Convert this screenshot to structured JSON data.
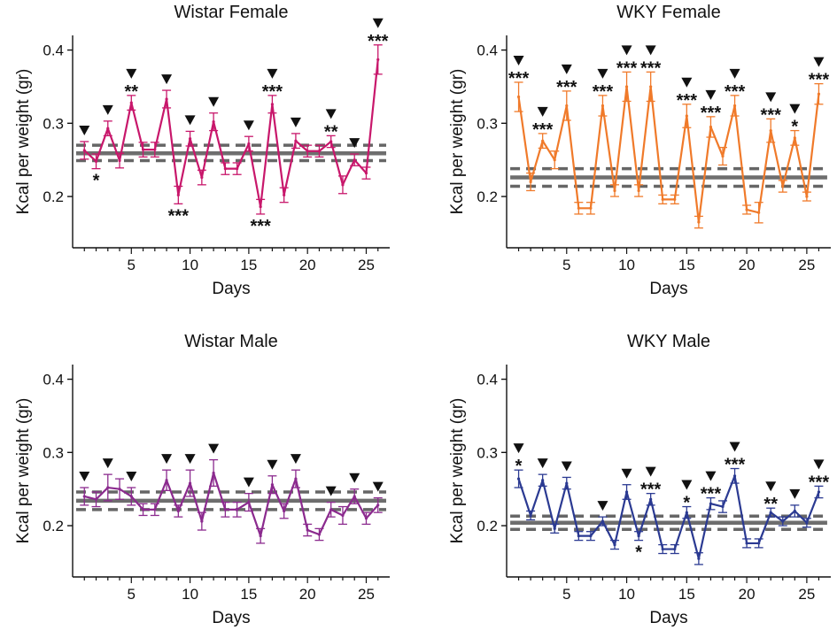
{
  "figure": {
    "background": "#ffffff"
  },
  "chart_data": [
    {
      "type": "line",
      "title": "Wistar Female",
      "xlabel": "Days",
      "ylabel": "Kcal per weight (gr)",
      "color": "#C8176B",
      "xlim": [
        0,
        27
      ],
      "ylim": [
        0.13,
        0.42
      ],
      "yticks": [
        0.2,
        0.3,
        0.4
      ],
      "ytick_labels": [
        "0.2",
        "0.3",
        "0.4"
      ],
      "xticks": [
        5,
        10,
        15,
        20,
        25
      ],
      "xtick_labels": [
        "5",
        "10",
        "15",
        "20",
        "25"
      ],
      "baseline": {
        "mean": 0.259,
        "upper": 0.27,
        "lower": 0.249
      },
      "x": [
        1,
        2,
        3,
        4,
        5,
        6,
        7,
        8,
        9,
        10,
        11,
        12,
        13,
        14,
        15,
        16,
        17,
        18,
        19,
        20,
        21,
        22,
        23,
        24,
        25,
        26
      ],
      "values": [
        0.263,
        0.248,
        0.293,
        0.249,
        0.328,
        0.264,
        0.264,
        0.333,
        0.202,
        0.279,
        0.226,
        0.302,
        0.238,
        0.238,
        0.272,
        0.186,
        0.326,
        0.202,
        0.276,
        0.262,
        0.262,
        0.275,
        0.216,
        0.25,
        0.232,
        0.387
      ],
      "errors": [
        0.012,
        0.01,
        0.01,
        0.01,
        0.01,
        0.01,
        0.01,
        0.012,
        0.012,
        0.01,
        0.01,
        0.012,
        0.008,
        0.008,
        0.01,
        0.01,
        0.012,
        0.01,
        0.01,
        0.008,
        0.008,
        0.008,
        0.012,
        0.008,
        0.008,
        0.02
      ],
      "annotations": [
        {
          "x": 1,
          "arrow": true,
          "stars": "",
          "position": "above"
        },
        {
          "x": 2,
          "arrow": false,
          "stars": "*",
          "position": "below"
        },
        {
          "x": 3,
          "arrow": true,
          "stars": "",
          "position": "above"
        },
        {
          "x": 5,
          "arrow": true,
          "stars": "**",
          "position": "above"
        },
        {
          "x": 8,
          "arrow": true,
          "stars": "",
          "position": "above"
        },
        {
          "x": 9,
          "arrow": false,
          "stars": "***",
          "position": "below"
        },
        {
          "x": 10,
          "arrow": true,
          "stars": "",
          "position": "above"
        },
        {
          "x": 12,
          "arrow": true,
          "stars": "",
          "position": "above"
        },
        {
          "x": 15,
          "arrow": true,
          "stars": "",
          "position": "above"
        },
        {
          "x": 16,
          "arrow": false,
          "stars": "***",
          "position": "below"
        },
        {
          "x": 17,
          "arrow": true,
          "stars": "***",
          "position": "above"
        },
        {
          "x": 19,
          "arrow": true,
          "stars": "",
          "position": "above"
        },
        {
          "x": 22,
          "arrow": true,
          "stars": "**",
          "position": "above"
        },
        {
          "x": 24,
          "arrow": true,
          "stars": "",
          "position": "above"
        },
        {
          "x": 26,
          "arrow": true,
          "stars": "***",
          "position": "above"
        }
      ]
    },
    {
      "type": "line",
      "title": "WKY Female",
      "xlabel": "Days",
      "ylabel": "Kcal per weight (gr)",
      "color": "#F07A2A",
      "xlim": [
        0,
        27
      ],
      "ylim": [
        0.13,
        0.42
      ],
      "yticks": [
        0.2,
        0.3,
        0.4
      ],
      "ytick_labels": [
        "0.2",
        "0.3",
        "0.4"
      ],
      "xticks": [
        5,
        10,
        15,
        20,
        25
      ],
      "xtick_labels": [
        "5",
        "10",
        "15",
        "20",
        "25"
      ],
      "baseline": {
        "mean": 0.226,
        "upper": 0.238,
        "lower": 0.214
      },
      "x": [
        1,
        2,
        3,
        4,
        5,
        6,
        7,
        8,
        9,
        10,
        11,
        12,
        13,
        14,
        15,
        16,
        17,
        18,
        19,
        20,
        21,
        22,
        23,
        24,
        25,
        26
      ],
      "values": [
        0.336,
        0.22,
        0.276,
        0.25,
        0.324,
        0.184,
        0.184,
        0.324,
        0.208,
        0.35,
        0.208,
        0.35,
        0.196,
        0.196,
        0.31,
        0.165,
        0.295,
        0.255,
        0.324,
        0.182,
        0.178,
        0.29,
        0.214,
        0.28,
        0.2,
        0.34
      ],
      "errors": [
        0.02,
        0.012,
        0.01,
        0.012,
        0.02,
        0.008,
        0.008,
        0.014,
        0.008,
        0.02,
        0.008,
        0.02,
        0.006,
        0.006,
        0.016,
        0.008,
        0.014,
        0.012,
        0.014,
        0.006,
        0.014,
        0.016,
        0.008,
        0.01,
        0.006,
        0.014
      ],
      "annotations": [
        {
          "x": 1,
          "arrow": true,
          "stars": "***",
          "position": "above"
        },
        {
          "x": 3,
          "arrow": true,
          "stars": "***",
          "position": "above"
        },
        {
          "x": 5,
          "arrow": true,
          "stars": "***",
          "position": "above"
        },
        {
          "x": 8,
          "arrow": true,
          "stars": "***",
          "position": "above"
        },
        {
          "x": 10,
          "arrow": true,
          "stars": "***",
          "position": "above"
        },
        {
          "x": 12,
          "arrow": true,
          "stars": "***",
          "position": "above"
        },
        {
          "x": 15,
          "arrow": true,
          "stars": "***",
          "position": "above"
        },
        {
          "x": 17,
          "arrow": true,
          "stars": "***",
          "position": "above"
        },
        {
          "x": 19,
          "arrow": true,
          "stars": "***",
          "position": "above"
        },
        {
          "x": 22,
          "arrow": true,
          "stars": "***",
          "position": "above"
        },
        {
          "x": 24,
          "arrow": true,
          "stars": "*",
          "position": "above"
        },
        {
          "x": 26,
          "arrow": true,
          "stars": "***",
          "position": "above"
        }
      ]
    },
    {
      "type": "line",
      "title": "Wistar Male",
      "xlabel": "Days",
      "ylabel": "Kcal per weight (gr)",
      "color": "#8B2A8E",
      "xlim": [
        0,
        27
      ],
      "ylim": [
        0.13,
        0.42
      ],
      "yticks": [
        0.2,
        0.3,
        0.4
      ],
      "ytick_labels": [
        "0.2",
        "0.3",
        "0.4"
      ],
      "xticks": [
        5,
        10,
        15,
        20,
        25
      ],
      "xtick_labels": [
        "5",
        "10",
        "15",
        "20",
        "25"
      ],
      "baseline": {
        "mean": 0.234,
        "upper": 0.246,
        "lower": 0.222
      },
      "x": [
        1,
        2,
        3,
        4,
        5,
        6,
        7,
        8,
        9,
        10,
        11,
        12,
        13,
        14,
        15,
        16,
        17,
        18,
        19,
        20,
        21,
        22,
        23,
        24,
        25,
        26
      ],
      "values": [
        0.24,
        0.236,
        0.252,
        0.25,
        0.24,
        0.222,
        0.222,
        0.262,
        0.22,
        0.258,
        0.206,
        0.272,
        0.222,
        0.222,
        0.232,
        0.186,
        0.256,
        0.22,
        0.264,
        0.194,
        0.188,
        0.222,
        0.214,
        0.24,
        0.21,
        0.228
      ],
      "errors": [
        0.012,
        0.01,
        0.018,
        0.014,
        0.012,
        0.008,
        0.008,
        0.014,
        0.008,
        0.018,
        0.012,
        0.018,
        0.01,
        0.01,
        0.012,
        0.01,
        0.012,
        0.01,
        0.012,
        0.008,
        0.008,
        0.01,
        0.012,
        0.01,
        0.008,
        0.01
      ],
      "annotations": [
        {
          "x": 1,
          "arrow": true,
          "stars": "",
          "position": "above"
        },
        {
          "x": 3,
          "arrow": true,
          "stars": "",
          "position": "above"
        },
        {
          "x": 5,
          "arrow": true,
          "stars": "",
          "position": "above"
        },
        {
          "x": 8,
          "arrow": true,
          "stars": "",
          "position": "above"
        },
        {
          "x": 10,
          "arrow": true,
          "stars": "",
          "position": "above"
        },
        {
          "x": 12,
          "arrow": true,
          "stars": "",
          "position": "above"
        },
        {
          "x": 15,
          "arrow": true,
          "stars": "",
          "position": "above"
        },
        {
          "x": 17,
          "arrow": true,
          "stars": "",
          "position": "above"
        },
        {
          "x": 19,
          "arrow": true,
          "stars": "",
          "position": "above"
        },
        {
          "x": 22,
          "arrow": true,
          "stars": "",
          "position": "above"
        },
        {
          "x": 24,
          "arrow": true,
          "stars": "",
          "position": "above"
        },
        {
          "x": 26,
          "arrow": true,
          "stars": "",
          "position": "above"
        }
      ]
    },
    {
      "type": "line",
      "title": "WKY Male",
      "xlabel": "Days",
      "ylabel": "Kcal per weight (gr)",
      "color": "#2B3A92",
      "xlim": [
        0,
        27
      ],
      "ylim": [
        0.13,
        0.42
      ],
      "yticks": [
        0.2,
        0.3,
        0.4
      ],
      "ytick_labels": [
        "0.2",
        "0.3",
        "0.4"
      ],
      "xticks": [
        5,
        10,
        15,
        20,
        25
      ],
      "xtick_labels": [
        "5",
        "10",
        "15",
        "20",
        "25"
      ],
      "baseline": {
        "mean": 0.204,
        "upper": 0.213,
        "lower": 0.195
      },
      "x": [
        1,
        2,
        3,
        4,
        5,
        6,
        7,
        8,
        9,
        10,
        11,
        12,
        13,
        14,
        15,
        16,
        17,
        18,
        19,
        20,
        21,
        22,
        23,
        24,
        25,
        26
      ],
      "values": [
        0.264,
        0.214,
        0.262,
        0.196,
        0.258,
        0.186,
        0.186,
        0.206,
        0.174,
        0.246,
        0.186,
        0.236,
        0.168,
        0.168,
        0.218,
        0.155,
        0.23,
        0.226,
        0.268,
        0.176,
        0.176,
        0.218,
        0.206,
        0.22,
        0.204,
        0.246
      ],
      "errors": [
        0.012,
        0.006,
        0.008,
        0.006,
        0.008,
        0.006,
        0.006,
        0.006,
        0.006,
        0.01,
        0.006,
        0.008,
        0.006,
        0.006,
        0.008,
        0.008,
        0.008,
        0.008,
        0.01,
        0.006,
        0.006,
        0.006,
        0.006,
        0.008,
        0.006,
        0.008
      ],
      "annotations": [
        {
          "x": 1,
          "arrow": true,
          "stars": "*",
          "position": "above"
        },
        {
          "x": 3,
          "arrow": true,
          "stars": "",
          "position": "above"
        },
        {
          "x": 5,
          "arrow": true,
          "stars": "",
          "position": "above"
        },
        {
          "x": 8,
          "arrow": true,
          "stars": "",
          "position": "above"
        },
        {
          "x": 10,
          "arrow": true,
          "stars": "",
          "position": "above"
        },
        {
          "x": 11,
          "arrow": false,
          "stars": "*",
          "position": "below"
        },
        {
          "x": 12,
          "arrow": true,
          "stars": "***",
          "position": "above"
        },
        {
          "x": 15,
          "arrow": true,
          "stars": "*",
          "position": "above"
        },
        {
          "x": 17,
          "arrow": true,
          "stars": "***",
          "position": "above"
        },
        {
          "x": 19,
          "arrow": true,
          "stars": "***",
          "position": "above"
        },
        {
          "x": 22,
          "arrow": true,
          "stars": "**",
          "position": "above"
        },
        {
          "x": 24,
          "arrow": true,
          "stars": "",
          "position": "above"
        },
        {
          "x": 26,
          "arrow": true,
          "stars": "***",
          "position": "above"
        }
      ]
    }
  ]
}
